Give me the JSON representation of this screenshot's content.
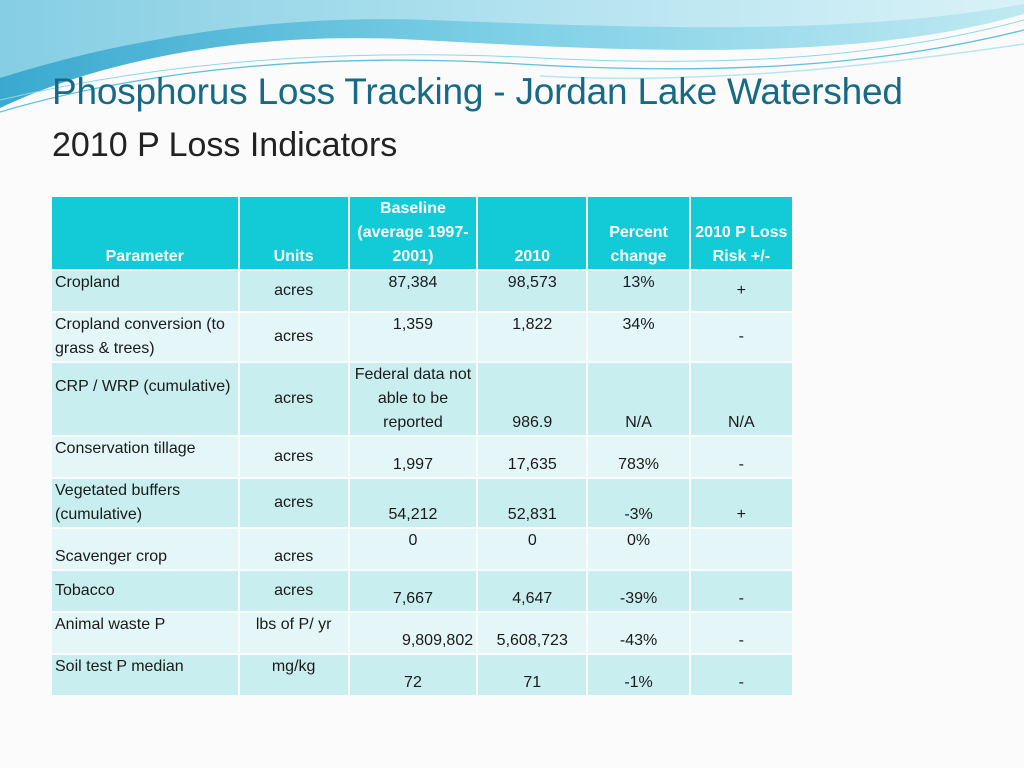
{
  "slide": {
    "title": "Phosphorus Loss Tracking - Jordan Lake Watershed",
    "subtitle": "2010 P Loss Indicators"
  },
  "table": {
    "headers": {
      "parameter": "Parameter",
      "units": "Units",
      "baseline": "Baseline (average 1997-2001)",
      "year_2010": "2010",
      "percent_change": "Percent change",
      "risk": "2010 P Loss Risk +/-"
    },
    "rows": [
      {
        "parameter": "Cropland",
        "units": "acres",
        "baseline": "87,384",
        "year_2010": "98,573",
        "percent_change": "13%",
        "risk": "+"
      },
      {
        "parameter": "Cropland conversion (to grass & trees)",
        "units": "acres",
        "baseline": "1,359",
        "year_2010": "1,822",
        "percent_change": "34%",
        "risk": "-"
      },
      {
        "parameter": "CRP / WRP (cumulative)",
        "units": "acres",
        "baseline": "Federal data not able to be reported",
        "year_2010": "986.9",
        "percent_change": "N/A",
        "risk": "N/A"
      },
      {
        "parameter": "Conservation tillage",
        "units": "acres",
        "baseline": "1,997",
        "year_2010": "17,635",
        "percent_change": "783%",
        "risk": "-"
      },
      {
        "parameter": "Vegetated buffers (cumulative)",
        "units": "acres",
        "baseline": "54,212",
        "year_2010": "52,831",
        "percent_change": "-3%",
        "risk": "+"
      },
      {
        "parameter": "Scavenger crop",
        "units": "acres",
        "baseline": "0",
        "year_2010": "0",
        "percent_change": "0%",
        "risk": ""
      },
      {
        "parameter": "Tobacco",
        "units": "acres",
        "baseline": "7,667",
        "year_2010": "4,647",
        "percent_change": "-39%",
        "risk": "-"
      },
      {
        "parameter": "Animal waste P",
        "units": "lbs of P/ yr",
        "baseline": "9,809,802",
        "year_2010": "5,608,723",
        "percent_change": "-43%",
        "risk": "-"
      },
      {
        "parameter": "Soil test P median",
        "units": "mg/kg",
        "baseline": "72",
        "year_2010": "71",
        "percent_change": "-1%",
        "risk": "-"
      }
    ]
  }
}
